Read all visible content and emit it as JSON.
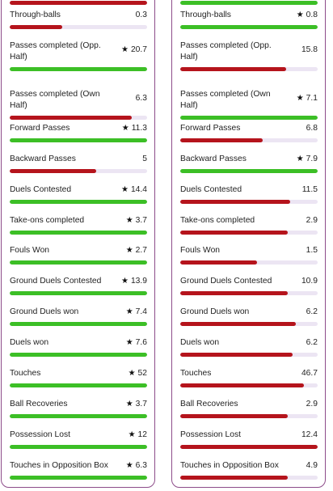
{
  "colors": {
    "better": "#3cbf26",
    "worse": "#b5141c",
    "track": "#ece5f3",
    "border": "#8d4c8a"
  },
  "left_panel": {
    "stats": [
      {
        "label": "Through-balls",
        "value": "0.3",
        "star": false,
        "fill": 0.38,
        "color": "#b5141c"
      },
      {
        "label": "Passes completed (Opp. Half)",
        "value": "20.7",
        "star": true,
        "fill": 1.0,
        "color": "#3cbf26"
      },
      {
        "label": "Passes completed (Own Half)",
        "value": "6.3",
        "star": false,
        "fill": 0.89,
        "color": "#b5141c"
      },
      {
        "label": "Forward Passes",
        "value": "11.3",
        "star": true,
        "fill": 1.0,
        "color": "#3cbf26"
      },
      {
        "label": "Backward Passes",
        "value": "5",
        "star": false,
        "fill": 0.63,
        "color": "#b5141c"
      },
      {
        "label": "Duels Contested",
        "value": "14.4",
        "star": true,
        "fill": 1.0,
        "color": "#3cbf26"
      },
      {
        "label": "Take-ons completed",
        "value": "3.7",
        "star": true,
        "fill": 1.0,
        "color": "#3cbf26"
      },
      {
        "label": "Fouls Won",
        "value": "2.7",
        "star": true,
        "fill": 1.0,
        "color": "#3cbf26"
      },
      {
        "label": "Ground Duels Contested",
        "value": "13.9",
        "star": true,
        "fill": 1.0,
        "color": "#3cbf26"
      },
      {
        "label": "Ground Duels won",
        "value": "7.4",
        "star": true,
        "fill": 1.0,
        "color": "#3cbf26"
      },
      {
        "label": "Duels won",
        "value": "7.6",
        "star": true,
        "fill": 1.0,
        "color": "#3cbf26"
      },
      {
        "label": "Touches",
        "value": "52",
        "star": true,
        "fill": 1.0,
        "color": "#3cbf26"
      },
      {
        "label": "Ball Recoveries",
        "value": "3.7",
        "star": true,
        "fill": 1.0,
        "color": "#3cbf26"
      },
      {
        "label": "Possession Lost",
        "value": "12",
        "star": true,
        "fill": 1.0,
        "color": "#3cbf26"
      },
      {
        "label": "Touches in Opposition Box",
        "value": "6.3",
        "star": true,
        "fill": 1.0,
        "color": "#3cbf26"
      }
    ]
  },
  "right_panel": {
    "stats": [
      {
        "label": "Through-balls",
        "value": "0.8",
        "star": true,
        "fill": 1.0,
        "color": "#3cbf26"
      },
      {
        "label": "Passes completed (Opp. Half)",
        "value": "15.8",
        "star": false,
        "fill": 0.77,
        "color": "#b5141c"
      },
      {
        "label": "Passes completed (Own Half)",
        "value": "7.1",
        "star": true,
        "fill": 1.0,
        "color": "#3cbf26"
      },
      {
        "label": "Forward Passes",
        "value": "6.8",
        "star": false,
        "fill": 0.6,
        "color": "#b5141c"
      },
      {
        "label": "Backward Passes",
        "value": "7.9",
        "star": true,
        "fill": 1.0,
        "color": "#3cbf26"
      },
      {
        "label": "Duels Contested",
        "value": "11.5",
        "star": false,
        "fill": 0.8,
        "color": "#b5141c"
      },
      {
        "label": "Take-ons completed",
        "value": "2.9",
        "star": false,
        "fill": 0.78,
        "color": "#b5141c"
      },
      {
        "label": "Fouls Won",
        "value": "1.5",
        "star": false,
        "fill": 0.56,
        "color": "#b5141c"
      },
      {
        "label": "Ground Duels Contested",
        "value": "10.9",
        "star": false,
        "fill": 0.78,
        "color": "#b5141c"
      },
      {
        "label": "Ground Duels won",
        "value": "6.2",
        "star": false,
        "fill": 0.84,
        "color": "#b5141c"
      },
      {
        "label": "Duels won",
        "value": "6.2",
        "star": false,
        "fill": 0.82,
        "color": "#b5141c"
      },
      {
        "label": "Touches",
        "value": "46.7",
        "star": false,
        "fill": 0.9,
        "color": "#b5141c"
      },
      {
        "label": "Ball Recoveries",
        "value": "2.9",
        "star": false,
        "fill": 0.78,
        "color": "#b5141c"
      },
      {
        "label": "Possession Lost",
        "value": "12.4",
        "star": false,
        "fill": 1.0,
        "color": "#b5141c"
      },
      {
        "label": "Touches in Opposition Box",
        "value": "4.9",
        "star": false,
        "fill": 0.78,
        "color": "#b5141c"
      }
    ]
  }
}
